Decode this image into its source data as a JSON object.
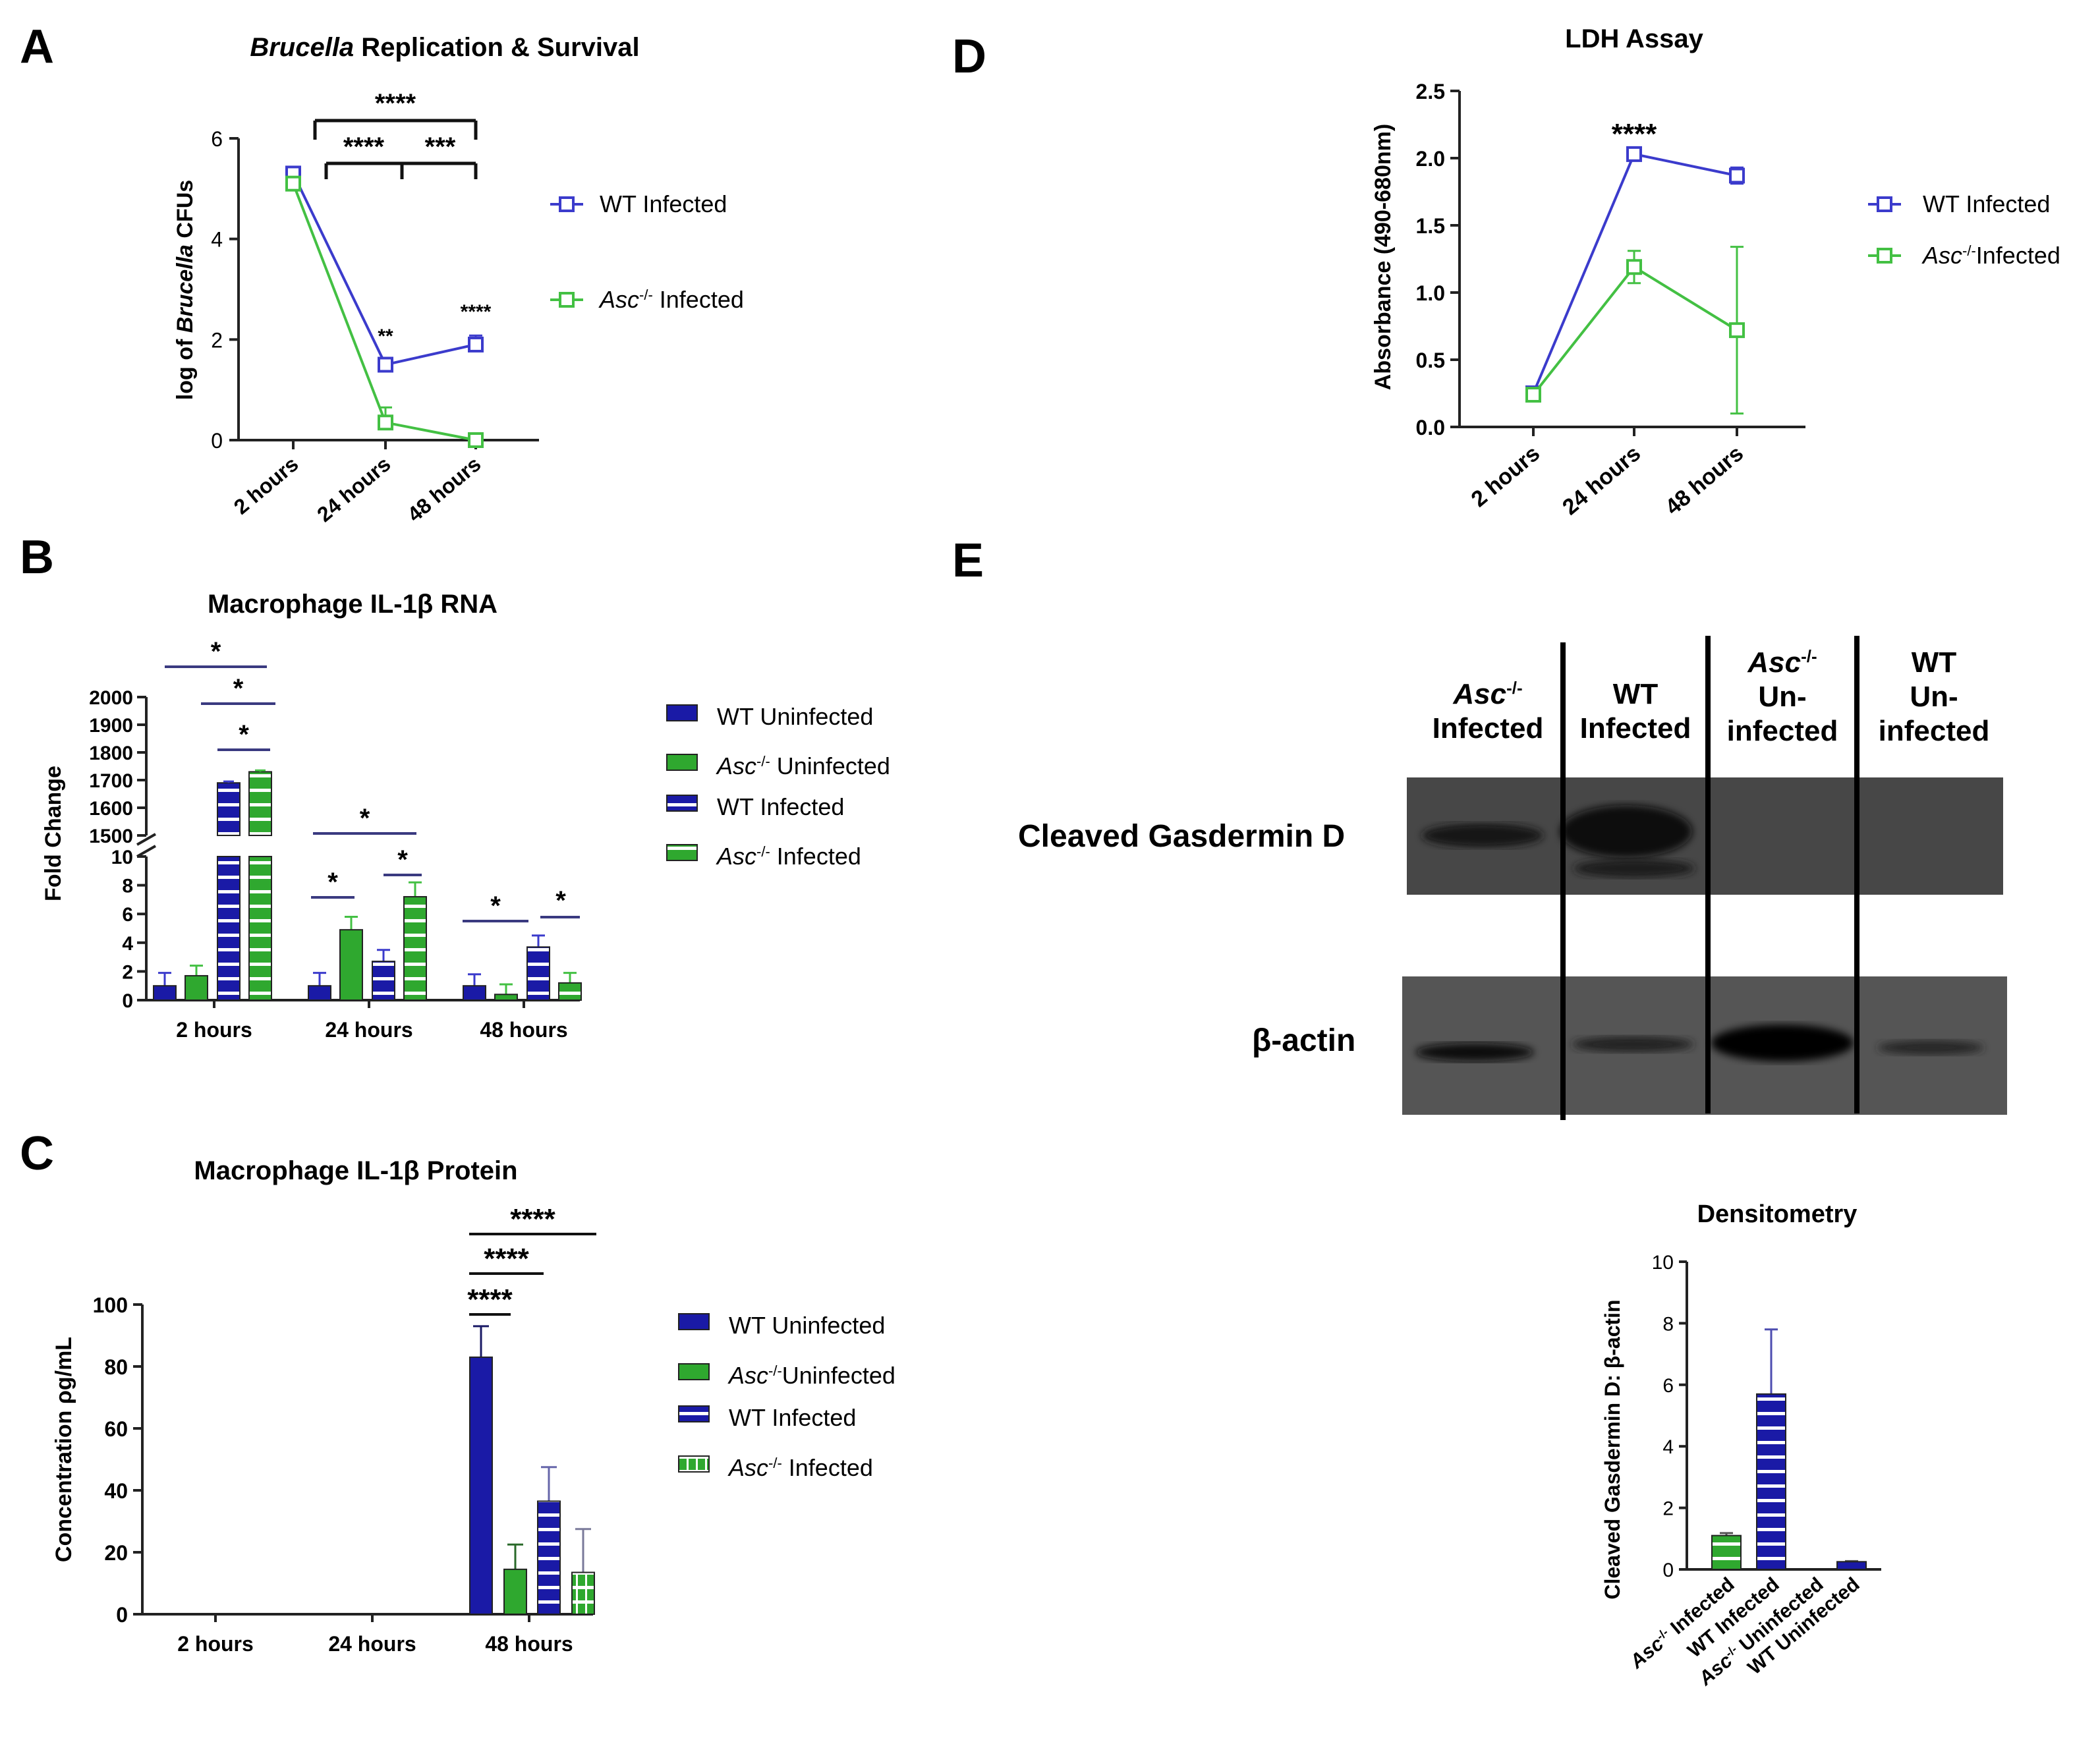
{
  "colors": {
    "wt": "#1a1aa6",
    "asc": "#2fa82f",
    "wt_line": "#3b3bcc",
    "asc_line": "#43c043",
    "wt_stripe": "#ffffff",
    "blot_bg": "#474747",
    "sig_bar": "#3a3a80"
  },
  "panels": {
    "A": "A",
    "B": "B",
    "C": "C",
    "D": "D",
    "E": "E"
  },
  "chart_data": [
    {
      "panel": "A",
      "type": "line",
      "title_italic": "Brucella",
      "title_rest": " Replication & Survival",
      "ylabel_pre": "log of ",
      "ylabel_italic": "Brucella",
      "ylabel_post": " CFUs",
      "ylim": [
        0,
        6
      ],
      "yticks": [
        "0",
        "2",
        "4",
        "6"
      ],
      "categories": [
        "2 hours",
        "24 hours",
        "48 hours"
      ],
      "series": [
        {
          "name": "WT Infected",
          "name_italic": "",
          "name_rest": "WT Infected",
          "values": [
            5.3,
            1.5,
            1.9
          ],
          "err": [
            0.08,
            0.1,
            0.18
          ]
        },
        {
          "name": "Asc-/- Infected",
          "name_italic": "Asc",
          "name_sup": "-/-",
          "name_rest": " Infected",
          "values": [
            5.1,
            0.35,
            0.0
          ],
          "err": [
            0.08,
            0.3,
            0.05
          ]
        }
      ],
      "point_annotations": [
        "",
        "**",
        "****"
      ],
      "comparisons": [
        [
          "2 hours",
          "48 hours",
          "****"
        ],
        [
          "24 hours",
          "48 hours",
          "***"
        ],
        [
          "2 hours",
          "24 hours",
          "****"
        ]
      ]
    },
    {
      "panel": "B",
      "type": "bar",
      "title": "Macrophage IL-1β RNA",
      "ylabel": "Fold Change",
      "axis_break": {
        "lower": [
          0,
          10
        ],
        "upper": [
          1500,
          2000
        ]
      },
      "yticks_lower": [
        "0",
        "2",
        "4",
        "6",
        "8",
        "10"
      ],
      "yticks_upper": [
        "1500",
        "1600",
        "1700",
        "1800",
        "1900",
        "2000"
      ],
      "categories": [
        "2 hours",
        "24 hours",
        "48 hours"
      ],
      "series": [
        {
          "name": "WT Uninfected",
          "values": [
            1.0,
            1.0,
            1.0
          ],
          "err": [
            0.9,
            0.9,
            0.8
          ]
        },
        {
          "name": "Asc-/- Uninfected",
          "values": [
            1.7,
            4.9,
            0.4
          ],
          "err": [
            0.7,
            0.9,
            0.7
          ]
        },
        {
          "name": "WT Infected",
          "values": [
            1690,
            2.7,
            3.7
          ],
          "err": [
            5,
            0.8,
            0.8
          ]
        },
        {
          "name": "Asc-/- Infected",
          "values": [
            1730,
            7.2,
            1.2
          ],
          "err": [
            5,
            1.0,
            0.7
          ]
        }
      ],
      "significance": [
        "*",
        "*",
        "*",
        "*",
        "*",
        "*",
        "*"
      ]
    },
    {
      "panel": "C",
      "type": "bar",
      "title": "Macrophage IL-1β Protein",
      "ylabel": "Concentration ρg/mL",
      "ylim": [
        0,
        100
      ],
      "yticks": [
        "0",
        "20",
        "40",
        "60",
        "80",
        "100"
      ],
      "categories": [
        "2 hours",
        "24 hours",
        "48 hours"
      ],
      "series": [
        {
          "name": "WT Uninfected",
          "values": [
            0,
            0,
            83
          ],
          "err": [
            0,
            0,
            10
          ]
        },
        {
          "name": "Asc-/- Uninfected",
          "values": [
            0,
            0,
            14.5
          ],
          "err": [
            0,
            0,
            8
          ]
        },
        {
          "name": "WT Infected",
          "values": [
            0,
            0,
            36.5
          ],
          "err": [
            0,
            0,
            11
          ]
        },
        {
          "name": "Asc-/- Infected",
          "values": [
            0,
            0,
            13.5
          ],
          "err": [
            0,
            0,
            14
          ]
        }
      ],
      "significance": [
        "****",
        "****",
        "****"
      ]
    },
    {
      "panel": "D",
      "type": "line",
      "title": "LDH Assay",
      "ylabel": "Absorbance (490-680nm)",
      "ylim": [
        0,
        2.5
      ],
      "yticks": [
        "0.0",
        "0.5",
        "1.0",
        "1.5",
        "2.0",
        "2.5"
      ],
      "categories": [
        "2 hours",
        "24 hours",
        "48 hours"
      ],
      "series": [
        {
          "name": "WT Infected",
          "values": [
            0.25,
            2.03,
            1.87
          ],
          "err": [
            0.03,
            0.03,
            0.06
          ]
        },
        {
          "name": "Asc-/- Infected",
          "values": [
            0.24,
            1.19,
            0.72
          ],
          "err": [
            0.03,
            0.12,
            0.62
          ]
        }
      ],
      "point_annotations": [
        "",
        "****",
        ""
      ]
    },
    {
      "panel": "E-densitometry",
      "type": "bar",
      "title": "Densitometry",
      "ylabel": "Cleaved Gasdermin D: β-actin",
      "ylim": [
        0,
        10
      ],
      "yticks": [
        "0",
        "2",
        "4",
        "6",
        "8",
        "10"
      ],
      "categories": [
        "Asc-/- Infected",
        "WT Infected",
        "Asc-/- Uninfected",
        "WT Uninfected"
      ],
      "values": [
        1.1,
        5.7,
        0.0,
        0.25
      ],
      "err": [
        0.08,
        2.1,
        0,
        0.02
      ]
    }
  ],
  "legend_AD": [
    {
      "italic": "",
      "sup": "",
      "rest": "WT Infected"
    },
    {
      "italic": "Asc",
      "sup": "-/-",
      "rest": " Infected"
    }
  ],
  "legend_D2": {
    "italic": "Asc",
    "sup": "-/-",
    "rest": "Infected"
  },
  "legend_bar": [
    {
      "italic": "",
      "sup": "",
      "rest": "WT Uninfected"
    },
    {
      "italic": "Asc",
      "sup": "-/-",
      "rest": " Uninfected"
    },
    {
      "italic": "",
      "sup": "",
      "rest": "WT Infected"
    },
    {
      "italic": "Asc",
      "sup": "-/-",
      "rest": " Infected"
    }
  ],
  "legend_C_asc_uninf": {
    "italic": "Asc",
    "sup": "-/-",
    "rest": "Uninfected"
  },
  "blot": {
    "lanes": [
      {
        "line1": "Asc",
        "line1_sup": "-/-",
        "line2": "Infected",
        "line3": ""
      },
      {
        "line1": "WT",
        "line1_sup": "",
        "line2": "Infected",
        "line3": ""
      },
      {
        "line1": "Asc",
        "line1_sup": "-/-",
        "line2": "Un-",
        "line3": "infected"
      },
      {
        "line1": "WT",
        "line1_sup": "",
        "line2": "Un-",
        "line3": "infected"
      }
    ],
    "row1_label": "Cleaved Gasdermin D",
    "row2_label": "β-actin"
  },
  "densitometry_xlabels": [
    {
      "italic": "Asc",
      "sup": "-/-",
      "rest": " Infected"
    },
    {
      "italic": "",
      "sup": "",
      "rest": "WT Infected"
    },
    {
      "italic": "Asc",
      "sup": "-/-",
      "rest": " Uninfected"
    },
    {
      "italic": "",
      "sup": "",
      "rest": "WT Uninfected"
    }
  ]
}
